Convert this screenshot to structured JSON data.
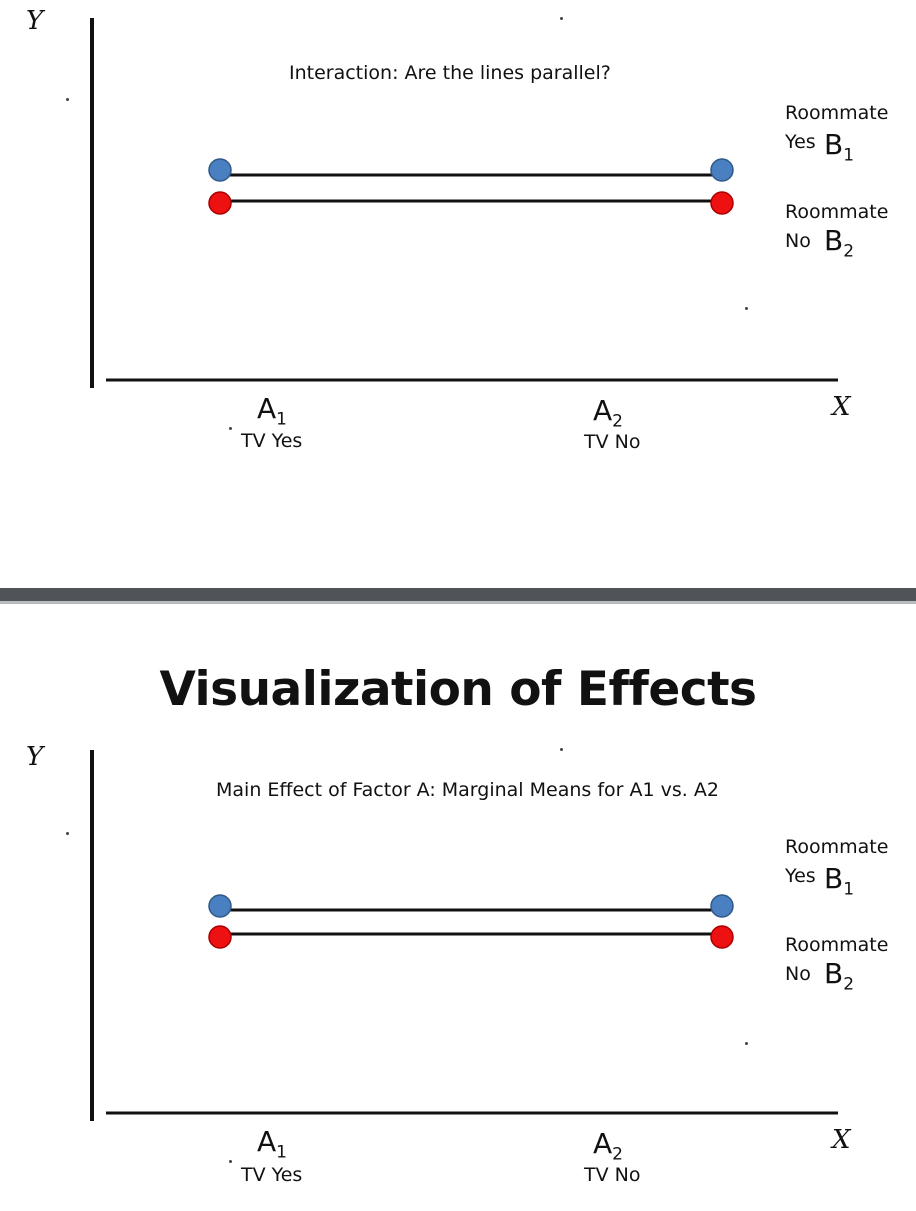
{
  "top_panel": {
    "caption": "Interaction: Are the lines parallel?",
    "y_axis_letter": "Y",
    "x_axis_letter": "X",
    "x_ticks": [
      {
        "letter": "A",
        "sub": "1",
        "label": "TV Yes"
      },
      {
        "letter": "A",
        "sub": "2",
        "label": "TV No"
      }
    ],
    "legend": [
      {
        "word": "Roommate",
        "value": "Yes",
        "letter": "B",
        "sub": "1",
        "color": "#4a7fc1"
      },
      {
        "word": "Roommate",
        "value": "No",
        "letter": "B",
        "sub": "2",
        "color": "#ee1111"
      }
    ]
  },
  "slide_title": "Visualization of Effects",
  "bottom_panel": {
    "caption": "Main Effect of Factor A: Marginal Means for A1 vs. A2",
    "y_axis_letter": "Y",
    "x_axis_letter": "X",
    "x_ticks": [
      {
        "letter": "A",
        "sub": "1",
        "label": "TV Yes"
      },
      {
        "letter": "A",
        "sub": "2",
        "label": "TV No"
      }
    ],
    "legend": [
      {
        "word": "Roommate",
        "value": "Yes",
        "letter": "B",
        "sub": "1",
        "color": "#4a7fc1"
      },
      {
        "word": "Roommate",
        "value": "No",
        "letter": "B",
        "sub": "2",
        "color": "#ee1111"
      }
    ]
  },
  "colors": {
    "b1_marker": "#4a7fc1",
    "b2_marker": "#ee1111",
    "divider": "#505458"
  }
}
